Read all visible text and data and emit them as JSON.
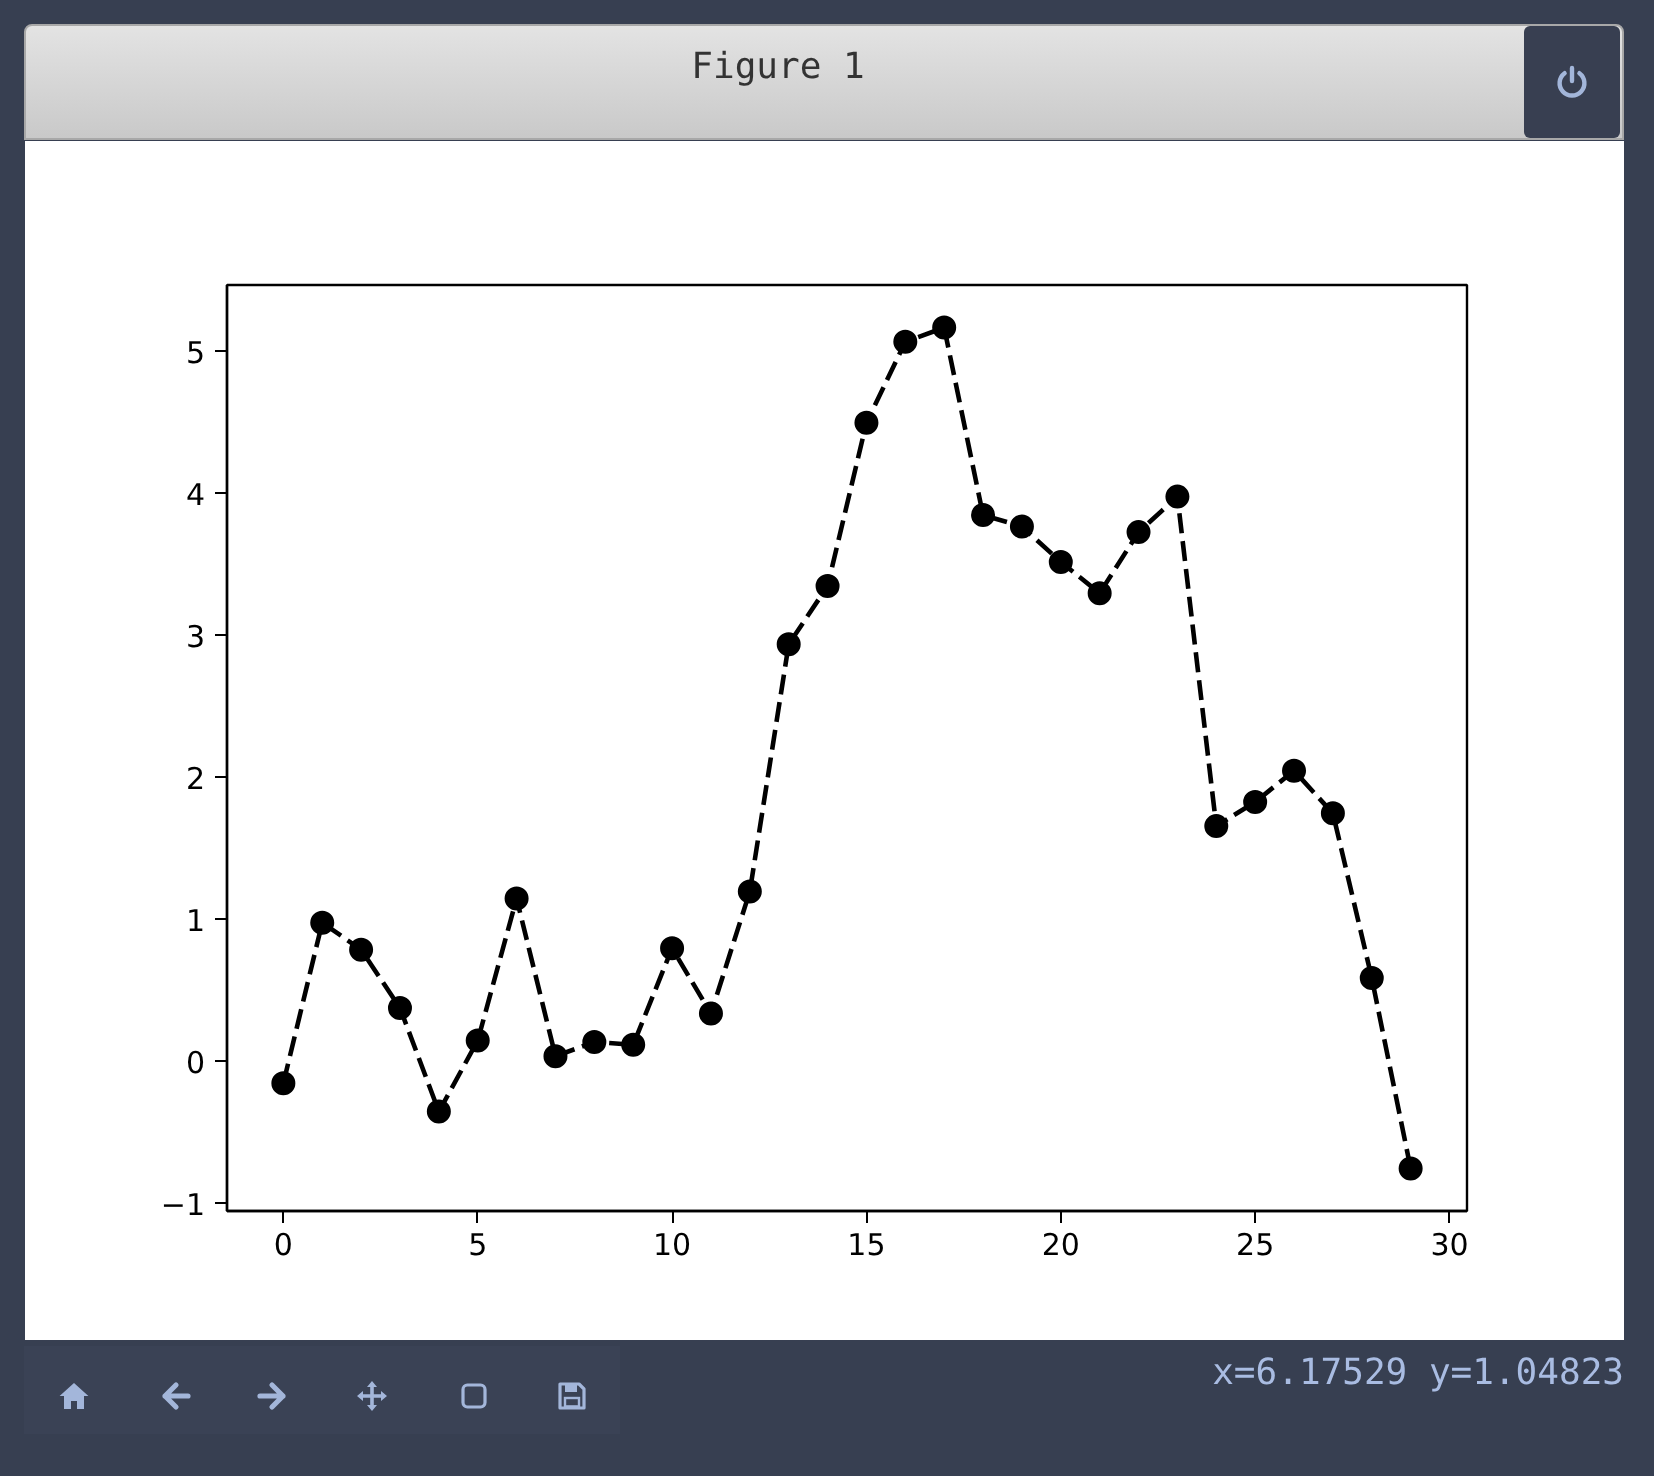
{
  "chart_data": {
    "type": "line",
    "title": "Figure 1",
    "x": [
      0,
      1,
      2,
      3,
      4,
      5,
      6,
      7,
      8,
      9,
      10,
      11,
      12,
      13,
      14,
      15,
      16,
      17,
      18,
      19,
      20,
      21,
      22,
      23,
      24,
      25,
      26,
      27,
      28,
      29
    ],
    "series": [
      {
        "color": "#000000",
        "values": [
          -0.15,
          0.98,
          0.79,
          0.38,
          -0.35,
          0.15,
          1.15,
          0.04,
          0.14,
          0.12,
          0.8,
          0.34,
          1.2,
          2.94,
          3.35,
          4.5,
          5.07,
          5.17,
          3.85,
          3.77,
          3.52,
          3.3,
          3.73,
          3.98,
          1.66,
          1.83,
          2.05,
          1.75,
          0.59,
          -0.75
        ]
      }
    ],
    "marker": "circle",
    "line_style": "dashed",
    "xlim": [
      -1.45,
      30.45
    ],
    "ylim": [
      -1.05,
      5.47
    ],
    "xticks": [
      0,
      5,
      10,
      15,
      20,
      25,
      30
    ],
    "yticks": [
      {
        "value": -1,
        "label": "−1"
      },
      0,
      1,
      2,
      3,
      4,
      5
    ],
    "grid": false,
    "annotations": [
      "x=6.17529 y=1.04823"
    ]
  }
}
